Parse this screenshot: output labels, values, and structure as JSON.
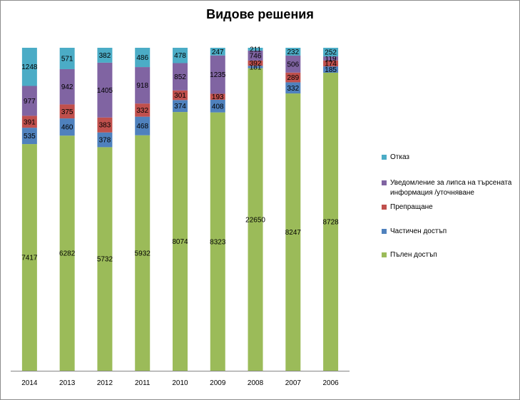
{
  "chart_data": {
    "type": "bar",
    "stacked": "100%",
    "title": "Видове решения",
    "xlabel": "",
    "ylabel": "",
    "categories": [
      "2014",
      "2013",
      "2012",
      "2011",
      "2010",
      "2009",
      "2008",
      "2007",
      "2006"
    ],
    "series": [
      {
        "name": "Пълен достъп",
        "color": "#9bbb59",
        "values": [
          7417,
          6282,
          5732,
          5932,
          8074,
          8323,
          22650,
          8247,
          8728
        ]
      },
      {
        "name": "Частичен достъп",
        "color": "#4f81bd",
        "values": [
          535,
          460,
          378,
          468,
          374,
          408,
          181,
          332,
          185
        ]
      },
      {
        "name": "Препращане",
        "color": "#c0504d",
        "values": [
          391,
          375,
          383,
          332,
          301,
          193,
          392,
          289,
          174
        ]
      },
      {
        "name": "Уведомление  за липса на търсената информация /уточняване",
        "color": "#8064a2",
        "values": [
          977,
          942,
          1405,
          918,
          852,
          1235,
          746,
          506,
          119
        ]
      },
      {
        "name": "Отказ",
        "color": "#4bacc6",
        "values": [
          1248,
          571,
          382,
          486,
          478,
          247,
          211,
          232,
          252
        ]
      }
    ],
    "legend_position": "right",
    "legend_order": [
      "Отказ",
      "Уведомление  за липса на търсената информация /уточняване",
      "Препращане",
      "Частичен достъп",
      "Пълен достъп"
    ],
    "grid": false
  }
}
